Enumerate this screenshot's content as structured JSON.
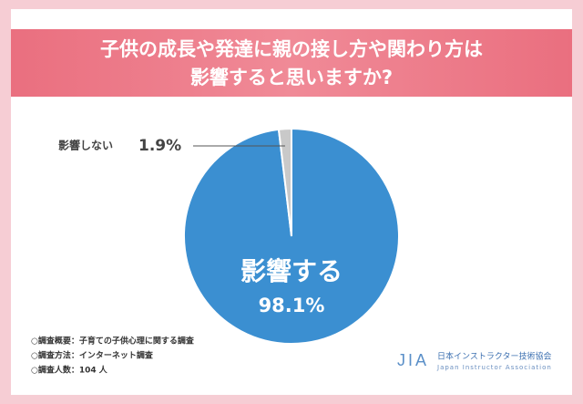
{
  "chart_data": {
    "type": "pie",
    "title": [
      "子供の成長や発達に親の接し方や関わり方は",
      "影響すると思いますか?"
    ],
    "categories": [
      "影響する",
      "影響しない"
    ],
    "values": [
      98.1,
      1.9
    ],
    "value_labels": [
      "98.1%",
      "1.9%"
    ],
    "colors": [
      "#3b8fd1",
      "#c9c9c9"
    ]
  },
  "notes": [
    "○調査概要：子育ての子供心理に関する調査",
    "○調査方法：インターネット調査",
    "○調査人数：104 人"
  ],
  "logo": {
    "mark": "JIA",
    "name": "日本インストラクター技術協会",
    "name_en": "Japan Instructor Association"
  }
}
